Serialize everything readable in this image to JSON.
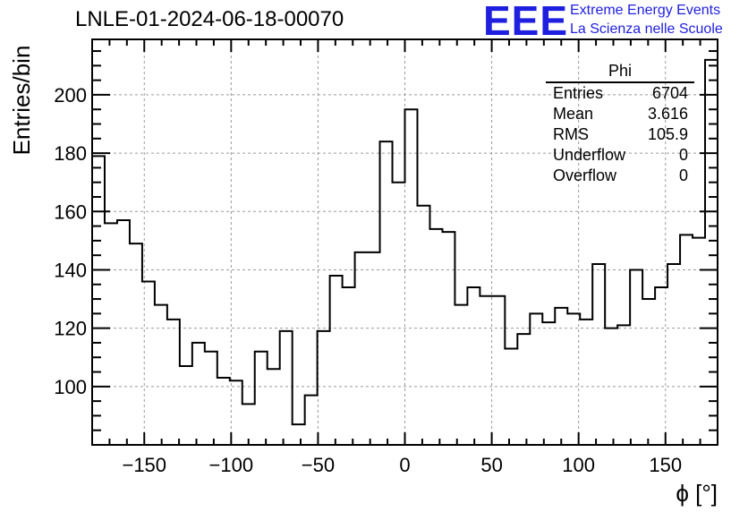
{
  "header": {
    "title": "LNLE-01-2024-06-18-00070",
    "logo": "EEE",
    "logo_line1": "Extreme Energy Events",
    "logo_line2": "La Scienza nelle Scuole"
  },
  "stats": {
    "name": "Phi",
    "rows": [
      {
        "label": "Entries",
        "value": "6704"
      },
      {
        "label": "Mean",
        "value": "3.616"
      },
      {
        "label": "RMS",
        "value": "105.9"
      },
      {
        "label": "Underflow",
        "value": "0"
      },
      {
        "label": "Overflow",
        "value": "0"
      }
    ]
  },
  "colors": {
    "line": "#000000",
    "grid": "#9a9a9a",
    "logo": "#1f1fe0"
  },
  "chart_data": {
    "type": "histogram",
    "title": "LNLE-01-2024-06-18-00070",
    "xlabel": "ϕ [°]",
    "ylabel": "Entries/bin",
    "xlim": [
      -180,
      180
    ],
    "ylim": [
      80,
      219
    ],
    "grid": true,
    "legend": "top-right",
    "x_ticks": [
      -150,
      -100,
      -50,
      0,
      50,
      100,
      150
    ],
    "x_tick_labels": [
      "−150",
      "−100",
      "−50",
      "0",
      "50",
      "100",
      "150"
    ],
    "y_ticks": [
      100,
      120,
      140,
      160,
      180,
      200
    ],
    "y_tick_labels": [
      "100",
      "120",
      "140",
      "160",
      "180",
      "200"
    ],
    "bin_width": 7.2,
    "bin_start": -180,
    "values": [
      179,
      156,
      157,
      149,
      136,
      128,
      123,
      107,
      115,
      112,
      103,
      102,
      94,
      112,
      106,
      119,
      87,
      97,
      119,
      138,
      134,
      146,
      146,
      184,
      170,
      195,
      162,
      154,
      153,
      128,
      134,
      131,
      131,
      113,
      118,
      125,
      122,
      127,
      125,
      123,
      142,
      120,
      121,
      140,
      130,
      134,
      142,
      152,
      151,
      212
    ]
  }
}
